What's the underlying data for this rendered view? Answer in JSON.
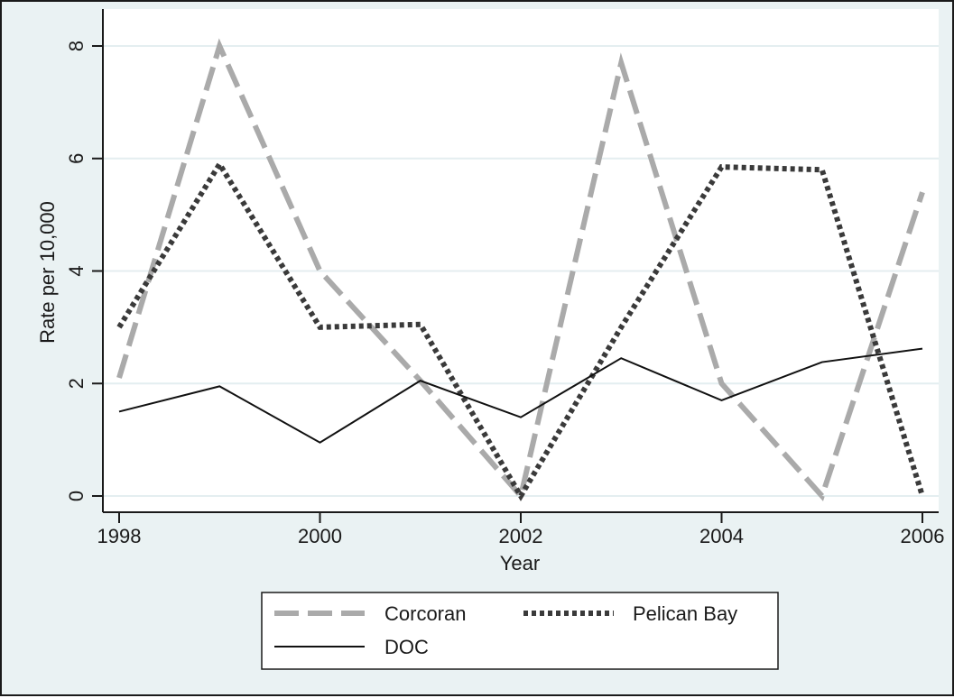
{
  "chart_data": {
    "type": "line",
    "title": "",
    "xlabel": "Year",
    "ylabel": "Rate per 10,000",
    "x": [
      1998,
      1999,
      2000,
      2001,
      2002,
      2003,
      2004,
      2005,
      2006
    ],
    "xlim": [
      1998,
      2006
    ],
    "ylim": [
      0,
      8
    ],
    "xticks": [
      1998,
      2000,
      2002,
      2004,
      2006
    ],
    "yticks": [
      0,
      2,
      4,
      6,
      8
    ],
    "grid": true,
    "legend_position": "bottom",
    "series": [
      {
        "name": "Corcoran",
        "style": "dashed",
        "color": "#aaaaaa",
        "values": [
          2.1,
          8.0,
          4.0,
          2.05,
          0.0,
          7.7,
          2.0,
          0.0,
          5.4
        ]
      },
      {
        "name": "Pelican Bay",
        "style": "dotted",
        "color": "#3a3a3a",
        "values": [
          3.0,
          5.9,
          3.0,
          3.05,
          0.0,
          3.0,
          5.85,
          5.8,
          0.0
        ]
      },
      {
        "name": "DOC",
        "style": "solid",
        "color": "#111111",
        "values": [
          1.5,
          1.95,
          0.95,
          2.05,
          1.4,
          2.45,
          1.7,
          2.38,
          2.62
        ]
      }
    ]
  }
}
